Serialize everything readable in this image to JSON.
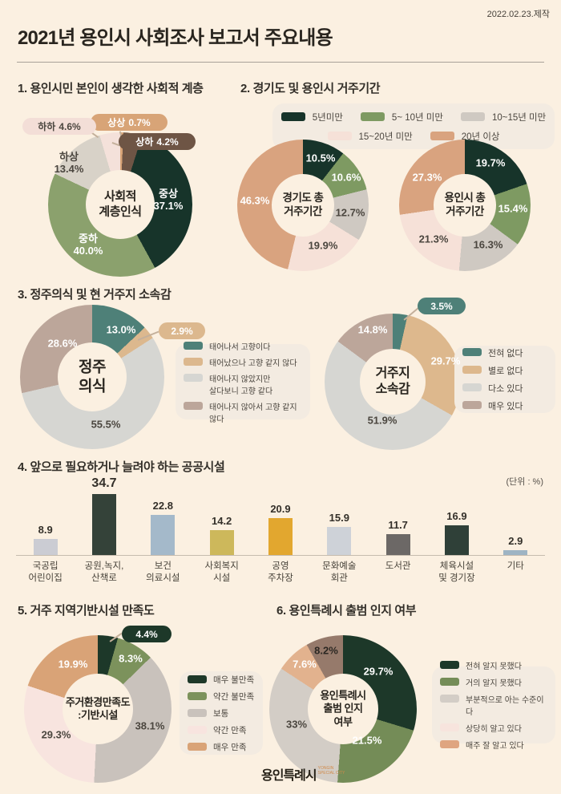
{
  "header": {
    "title": "2021년 용인시 사회조사 보고서 주요내용",
    "date": "2022.02.23.제작"
  },
  "sections": {
    "s1": {
      "heading": "1. 용인시민 본인이 생각한 사회적 계층"
    },
    "s2": {
      "heading": "2. 경기도 및 용인시 거주기간"
    },
    "s3": {
      "heading": "3. 정주의식 및 현 거주지 소속감"
    },
    "s4": {
      "heading": "4. 앞으로 필요하거나 늘려야 하는 공공시설",
      "unit": "(단위 : %)"
    },
    "s5": {
      "heading": "5. 거주 지역기반시설 만족도"
    },
    "s6": {
      "heading": "6. 용인특례시 출범 인지 여부"
    }
  },
  "footer": {
    "logo": "용인특례시",
    "logo_sub": "YONGIN SPECIAL CITY"
  },
  "chart_data": [
    {
      "id": "social-class",
      "type": "donut",
      "title": "사회적 계층인식",
      "center": "사회적\n계층인식",
      "labels": [
        "상상",
        "상하",
        "중상",
        "중하",
        "하상",
        "하하"
      ],
      "values": [
        0.7,
        4.2,
        37.1,
        40.0,
        13.4,
        4.6
      ],
      "display": [
        "0.7%",
        "4.2%",
        "37.1%",
        "40.0%",
        "13.4%",
        "4.6%"
      ],
      "colors": [
        "#d8a477",
        "#6e5545",
        "#17342a",
        "#8ba16d",
        "#d8d2c8",
        "#f4e1da"
      ]
    },
    {
      "id": "gyeonggi-residence",
      "type": "donut",
      "title": "경기도 총 거주기간",
      "center": "경기도 총\n거주기간",
      "labels": [
        "5년미만",
        "5~ 10년 미만",
        "10~15년 미만",
        "15~20년 미만",
        "20년 이상"
      ],
      "values": [
        10.5,
        10.6,
        12.7,
        19.9,
        46.3
      ],
      "display": [
        "10.5%",
        "10.6%",
        "12.7%",
        "19.9%",
        "46.3%"
      ],
      "colors": [
        "#17342a",
        "#7e9a62",
        "#cfc9c2",
        "#f6e1d8",
        "#d9a37f"
      ]
    },
    {
      "id": "yongin-residence",
      "type": "donut",
      "title": "용인시 총 거주기간",
      "center": "용인시 총\n거주기간",
      "labels": [
        "5년미만",
        "5~ 10년 미만",
        "10~15년 미만",
        "15~20년 미만",
        "20년 이상"
      ],
      "values": [
        19.7,
        15.4,
        16.3,
        21.3,
        27.3
      ],
      "display": [
        "19.7%",
        "15.4%",
        "16.3%",
        "21.3%",
        "27.3%"
      ],
      "colors": [
        "#17342a",
        "#7e9a62",
        "#cfc9c2",
        "#f6e1d8",
        "#d9a37f"
      ]
    },
    {
      "id": "settlement",
      "type": "donut",
      "title": "정주의식",
      "center": "정주\n의식",
      "labels": [
        "태어나서 고향이다",
        "태어났으나 고향 같지 않다",
        "태어나지 않았지만\n살다보니 고향 같다",
        "태어나지 않아서 고향 같지 않다"
      ],
      "values": [
        13.0,
        2.9,
        55.5,
        28.6
      ],
      "display": [
        "13.0%",
        "2.9%",
        "55.5%",
        "28.6%"
      ],
      "colors": [
        "#4e8078",
        "#dcb88e",
        "#d6d6d2",
        "#bca69a"
      ]
    },
    {
      "id": "belonging",
      "type": "donut",
      "title": "거주지 소속감",
      "center": "거주지\n소속감",
      "labels": [
        "전혀 없다",
        "별로 없다",
        "다소 있다",
        "매우 있다"
      ],
      "values": [
        3.5,
        29.7,
        51.9,
        14.8
      ],
      "display": [
        "3.5%",
        "29.7%",
        "51.9%",
        "14.8%"
      ],
      "colors": [
        "#4e8078",
        "#ddb88d",
        "#d6d6d2",
        "#bca69a"
      ]
    },
    {
      "id": "public-facilities",
      "type": "bar",
      "title": "앞으로 필요하거나 늘려야 하는 공공시설",
      "unit": "(단위 : %)",
      "categories": [
        "국공립\n어린이집",
        "공원,녹지,\n산책로",
        "보건\n의료시설",
        "사회복지\n시설",
        "공영\n주차장",
        "문화예술\n회관",
        "도서관",
        "체육시설\n및 경기장",
        "기타"
      ],
      "values": [
        8.9,
        34.7,
        22.8,
        14.2,
        20.9,
        15.9,
        11.7,
        16.9,
        2.9
      ],
      "display": [
        "8.9",
        "34.7",
        "22.8",
        "14.2",
        "20.9",
        "15.9",
        "11.7",
        "16.9",
        "2.9"
      ],
      "colors": [
        "#cbccd3",
        "#344239",
        "#a4b9ca",
        "#cdb85b",
        "#e2a72f",
        "#ced2d8",
        "#6c6866",
        "#2f4038",
        "#9eb4c4"
      ]
    },
    {
      "id": "infra-satisfaction",
      "type": "donut",
      "title": "주거환경만족도 :기반시설",
      "center": "주거환경만족도\n:기반시설",
      "labels": [
        "매우 불만족",
        "약간 불만족",
        "보통",
        "약간 만족",
        "매우 만족"
      ],
      "values": [
        4.4,
        8.3,
        38.1,
        29.3,
        19.9
      ],
      "display": [
        "4.4%",
        "8.3%",
        "38.1%",
        "29.3%",
        "19.9%"
      ],
      "colors": [
        "#1d3829",
        "#7c925c",
        "#c9c2bc",
        "#f8e4df",
        "#d9a377"
      ]
    },
    {
      "id": "special-city-awareness",
      "type": "donut",
      "title": "용인특례시 출범 인지 여부",
      "center": "용인특례시\n출범 인지\n여부",
      "labels": [
        "전혀 알지 못했다",
        "거의 알지 못했다",
        "부분적으로 아는 수준이다",
        "상당히 알고 있다",
        "매주 잘 알고 있다"
      ],
      "values": [
        29.7,
        21.5,
        33,
        7.6,
        8.2
      ],
      "display": [
        "29.7%",
        "21.5%",
        "33%",
        "7.6%",
        "8.2%"
      ],
      "colors": [
        "#1d3829",
        "#748c57",
        "#d3cdc6",
        "#e2b28e",
        "#967a6b"
      ],
      "legend_colors": [
        "#1d3829",
        "#748c57",
        "#d3cdc6",
        "#f7e4dd",
        "#dfa580"
      ]
    }
  ]
}
